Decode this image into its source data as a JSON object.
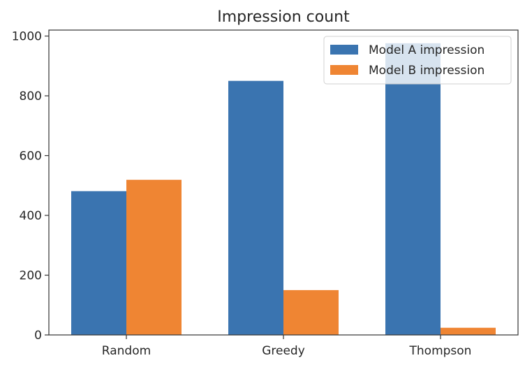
{
  "chart_data": {
    "type": "bar",
    "title": "Impression count",
    "xlabel": "",
    "ylabel": "",
    "categories": [
      "Random",
      "Greedy",
      "Thompson"
    ],
    "series": [
      {
        "name": "Model A impression",
        "values": [
          481,
          850,
          976
        ],
        "color": "#3a74b0"
      },
      {
        "name": "Model B impression",
        "values": [
          519,
          150,
          24
        ],
        "color": "#ef8533"
      }
    ],
    "ylim": [
      0,
      1020
    ],
    "yticks": [
      0,
      200,
      400,
      600,
      800,
      1000
    ],
    "grid": false,
    "legend_position": "top-right"
  }
}
